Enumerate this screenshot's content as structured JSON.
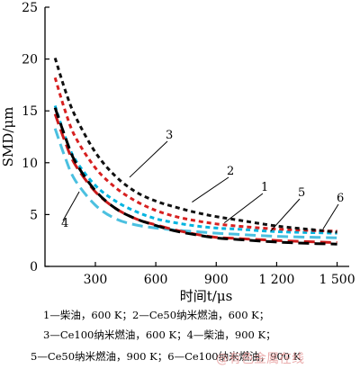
{
  "chart_data": {
    "type": "line",
    "xlabel": "时间t/μs",
    "ylabel": "SMD/μm",
    "xlim": [
      50,
      1560
    ],
    "ylim": [
      0,
      25
    ],
    "x_ticks": [
      300,
      600,
      900,
      1200,
      1500
    ],
    "x_tick_labels": [
      "300",
      "600",
      "900",
      "1 200",
      "1 500"
    ],
    "y_ticks": [
      0,
      5,
      10,
      15,
      20,
      25
    ],
    "y_tick_labels": [
      "0",
      "5",
      "10",
      "15",
      "20",
      "25"
    ],
    "grid": false,
    "series": [
      {
        "name": "1",
        "color": "#00b4e0",
        "dash": "short",
        "x": [
          100,
          150,
          200,
          300,
          400,
          500,
          600,
          700,
          800,
          900,
          1000,
          1200,
          1400,
          1500
        ],
        "y": [
          15.5,
          12.5,
          10.3,
          7.8,
          6.3,
          5.3,
          4.6,
          4.2,
          3.9,
          3.7,
          3.6,
          3.35,
          3.25,
          3.2
        ]
      },
      {
        "name": "2",
        "color": "#d72020",
        "dash": "short",
        "x": [
          100,
          150,
          200,
          300,
          400,
          500,
          600,
          700,
          800,
          900,
          1000,
          1200,
          1400,
          1500
        ],
        "y": [
          18.2,
          15.0,
          12.5,
          9.5,
          7.6,
          6.3,
          5.4,
          4.8,
          4.4,
          4.1,
          3.9,
          3.6,
          3.45,
          3.4
        ]
      },
      {
        "name": "3",
        "color": "#111111",
        "dash": "short",
        "x": [
          100,
          150,
          200,
          300,
          400,
          500,
          600,
          700,
          800,
          900,
          1000,
          1200,
          1400,
          1500
        ],
        "y": [
          20.1,
          17.0,
          14.5,
          11.0,
          8.7,
          7.2,
          6.3,
          5.7,
          5.2,
          4.8,
          4.5,
          3.9,
          3.5,
          3.3
        ]
      },
      {
        "name": "4",
        "color": "#4bc0e0",
        "dash": "long",
        "x": [
          100,
          150,
          200,
          300,
          400,
          500,
          600,
          700,
          800,
          900,
          1000,
          1200,
          1400,
          1500
        ],
        "y": [
          13.3,
          10.5,
          8.3,
          5.9,
          4.6,
          4.0,
          3.7,
          3.5,
          3.35,
          3.2,
          3.1,
          2.9,
          2.8,
          2.75
        ]
      },
      {
        "name": "5",
        "color": "#cc1a1a",
        "dash": "long",
        "x": [
          100,
          150,
          200,
          300,
          400,
          500,
          600,
          700,
          800,
          900,
          1000,
          1200,
          1400,
          1500
        ],
        "y": [
          14.7,
          12.0,
          9.8,
          7.2,
          5.6,
          4.6,
          4.0,
          3.5,
          3.1,
          2.8,
          2.7,
          2.5,
          2.35,
          2.3
        ]
      },
      {
        "name": "6",
        "color": "#000000",
        "dash": "long",
        "x": [
          100,
          150,
          200,
          300,
          400,
          500,
          600,
          700,
          800,
          900,
          1000,
          1200,
          1400,
          1500
        ],
        "y": [
          15.3,
          12.5,
          10.1,
          7.3,
          5.6,
          4.6,
          3.95,
          3.4,
          3.05,
          2.75,
          2.6,
          2.35,
          2.2,
          2.15
        ]
      }
    ],
    "curve_labels": [
      {
        "text": "3",
        "color": "#111111"
      },
      {
        "text": "2",
        "color": "#111111"
      },
      {
        "text": "1",
        "color": "#111111"
      },
      {
        "text": "5",
        "color": "#111111"
      },
      {
        "text": "6",
        "color": "#111111"
      },
      {
        "text": "4",
        "color": "#111111"
      }
    ]
  },
  "legend": {
    "line1": "1—柴油，600 K；2—Ce50纳米燃油，600 K；",
    "line2": "3—Ce100纳米燃油，600 K；4—柴油，900 K；",
    "line3": "5—Ce50纳米燃油，900 K；6—Ce100纳米燃油，900 K"
  },
  "watermark": "@有色金属在线"
}
